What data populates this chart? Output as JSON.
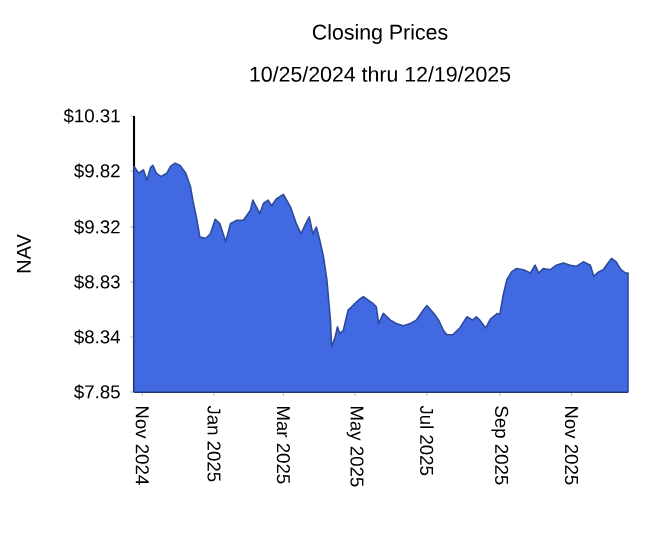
{
  "chart_data": {
    "type": "area",
    "title": "Closing Prices",
    "subtitle": "10/25/2024 thru 12/19/2025",
    "ylabel": "NAV",
    "xlim": [
      "2024-10-25",
      "2025-12-19"
    ],
    "xticks": [
      {
        "value": "2024-11-01",
        "label": "Nov 2024"
      },
      {
        "value": "2025-01-01",
        "label": "Jan 2025"
      },
      {
        "value": "2025-03-01",
        "label": "Mar 2025"
      },
      {
        "value": "2025-05-01",
        "label": "May 2025"
      },
      {
        "value": "2025-07-01",
        "label": "Jul 2025"
      },
      {
        "value": "2025-09-01",
        "label": "Sep 2025"
      },
      {
        "value": "2025-11-01",
        "label": "Nov 2025"
      }
    ],
    "ylim": [
      7.85,
      10.31
    ],
    "yticks": [
      {
        "value": 7.85,
        "label": "$7.85"
      },
      {
        "value": 8.34,
        "label": "$8.34"
      },
      {
        "value": 8.83,
        "label": "$8.83"
      },
      {
        "value": 9.32,
        "label": "$9.32"
      },
      {
        "value": 9.82,
        "label": "$9.82"
      },
      {
        "value": 10.31,
        "label": "$10.31"
      }
    ],
    "series": [
      {
        "color": "#4169e1",
        "x": [
          "2024-10-25",
          "2024-10-29",
          "2024-11-02",
          "2024-11-05",
          "2024-11-08",
          "2024-11-10",
          "2024-11-13",
          "2024-11-17",
          "2024-11-22",
          "2024-11-25",
          "2024-11-29",
          "2024-12-03",
          "2024-12-08",
          "2024-12-12",
          "2024-12-14",
          "2024-12-17",
          "2024-12-20",
          "2024-12-25",
          "2024-12-29",
          "2025-01-02",
          "2025-01-06",
          "2025-01-11",
          "2025-01-15",
          "2025-01-20",
          "2025-01-26",
          "2025-02-01",
          "2025-02-03",
          "2025-02-06",
          "2025-02-09",
          "2025-02-12",
          "2025-02-16",
          "2025-02-19",
          "2025-02-23",
          "2025-03-01",
          "2025-03-07",
          "2025-03-12",
          "2025-03-16",
          "2025-03-20",
          "2025-03-23",
          "2025-03-26",
          "2025-03-29",
          "2025-04-01",
          "2025-04-04",
          "2025-04-07",
          "2025-04-10",
          "2025-04-11",
          "2025-04-14",
          "2025-04-16",
          "2025-04-18",
          "2025-04-21",
          "2025-04-23",
          "2025-04-25",
          "2025-04-28",
          "2025-05-01",
          "2025-05-04",
          "2025-05-08",
          "2025-05-12",
          "2025-05-16",
          "2025-05-19",
          "2025-05-21",
          "2025-05-25",
          "2025-05-31",
          "2025-06-05",
          "2025-06-11",
          "2025-06-17",
          "2025-06-22",
          "2025-06-28",
          "2025-07-01",
          "2025-07-07",
          "2025-07-11",
          "2025-07-15",
          "2025-07-18",
          "2025-07-23",
          "2025-07-29",
          "2025-08-04",
          "2025-08-09",
          "2025-08-12",
          "2025-08-15",
          "2025-08-20",
          "2025-08-24",
          "2025-08-30",
          "2025-09-01",
          "2025-09-04",
          "2025-09-07",
          "2025-09-11",
          "2025-09-15",
          "2025-09-21",
          "2025-09-27",
          "2025-10-01",
          "2025-10-04",
          "2025-10-08",
          "2025-10-14",
          "2025-10-19",
          "2025-10-25",
          "2025-10-31",
          "2025-11-05",
          "2025-11-11",
          "2025-11-17",
          "2025-11-20",
          "2025-11-24",
          "2025-11-28",
          "2025-12-02",
          "2025-12-05",
          "2025-12-09",
          "2025-12-13",
          "2025-12-17",
          "2025-12-19"
        ],
        "values": [
          9.86,
          9.8,
          9.83,
          9.74,
          9.85,
          9.87,
          9.8,
          9.77,
          9.8,
          9.86,
          9.89,
          9.87,
          9.8,
          9.68,
          9.56,
          9.41,
          9.23,
          9.22,
          9.26,
          9.39,
          9.35,
          9.19,
          9.35,
          9.38,
          9.38,
          9.47,
          9.56,
          9.5,
          9.44,
          9.53,
          9.56,
          9.51,
          9.57,
          9.61,
          9.5,
          9.35,
          9.26,
          9.35,
          9.41,
          9.26,
          9.32,
          9.2,
          9.06,
          8.85,
          8.49,
          8.25,
          8.34,
          8.43,
          8.37,
          8.4,
          8.49,
          8.58,
          8.61,
          8.64,
          8.67,
          8.7,
          8.67,
          8.64,
          8.61,
          8.46,
          8.55,
          8.49,
          8.46,
          8.44,
          8.46,
          8.49,
          8.58,
          8.62,
          8.55,
          8.49,
          8.4,
          8.36,
          8.36,
          8.42,
          8.52,
          8.49,
          8.52,
          8.49,
          8.42,
          8.5,
          8.55,
          8.54,
          8.72,
          8.85,
          8.92,
          8.95,
          8.94,
          8.91,
          8.98,
          8.91,
          8.95,
          8.94,
          8.98,
          9.0,
          8.98,
          8.97,
          9.01,
          8.98,
          8.88,
          8.92,
          8.94,
          9.0,
          9.04,
          9.01,
          8.94,
          8.91,
          8.91
        ]
      }
    ]
  }
}
